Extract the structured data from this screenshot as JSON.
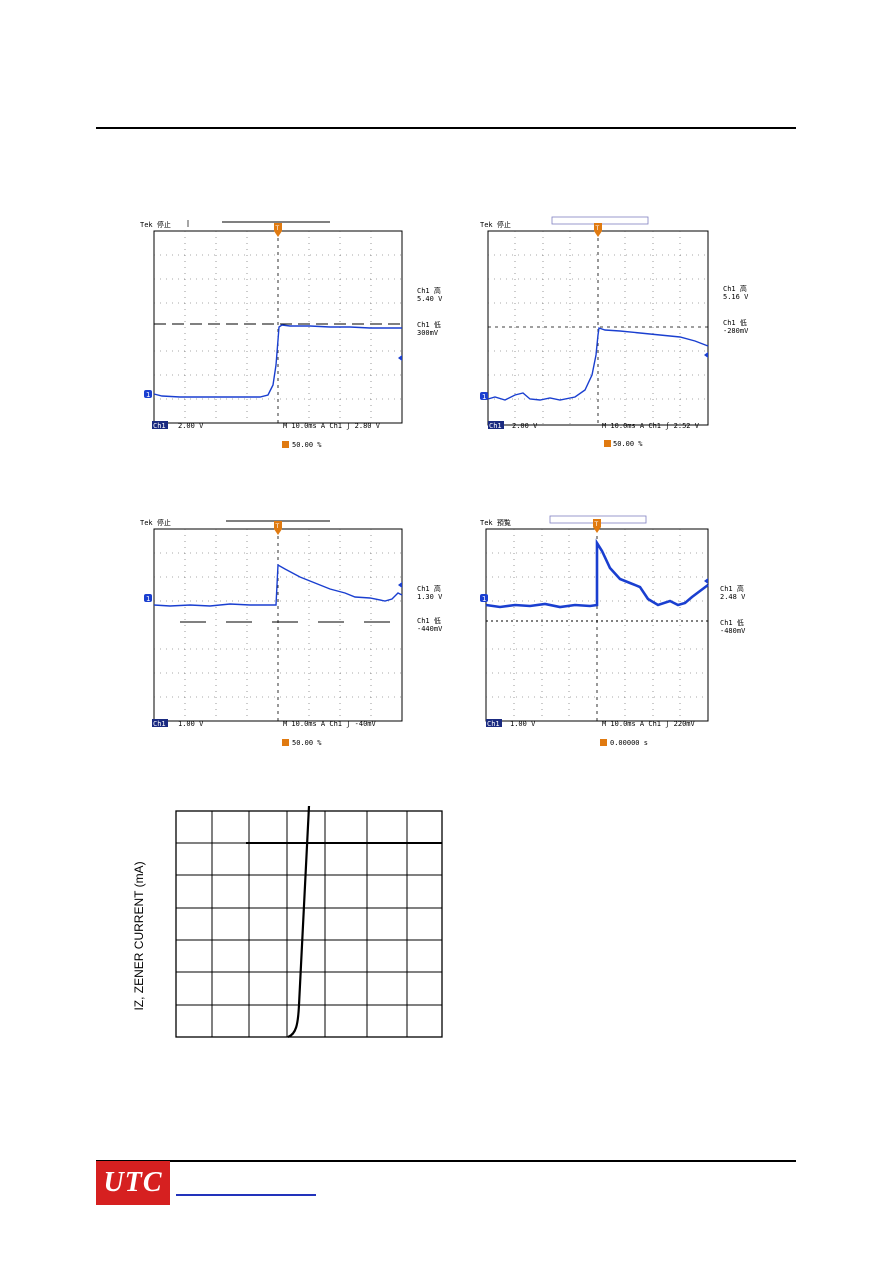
{
  "scopes": [
    {
      "id": "scope1",
      "top_label": "Tek 停止",
      "side": [
        {
          "line1": "Ch1 高",
          "line2": "5.40 V"
        },
        {
          "line1": "Ch1 低",
          "line2": "300mV"
        }
      ],
      "bottom_ch": "Ch1",
      "bottom_left": "2.00 V",
      "bottom_right": "M 10.0ms  A  Ch1  ʃ  2.80 V",
      "trigger_text": "50.00 %",
      "colors": {
        "trace": "#1a3fd0",
        "trigger": "#e07a10"
      }
    },
    {
      "id": "scope2",
      "top_label": "Tek 停止",
      "side": [
        {
          "line1": "Ch1 高",
          "line2": "5.16 V"
        },
        {
          "line1": "Ch1 低",
          "line2": "-280mV"
        }
      ],
      "bottom_ch": "Ch1",
      "bottom_left": "2.00 V",
      "bottom_right": "M 10.0ms  A  Ch1  ʃ  2.52 V",
      "trigger_text": "50.00 %"
    },
    {
      "id": "scope3",
      "top_label": "Tek 停止",
      "side": [
        {
          "line1": "Ch1 高",
          "line2": "1.30 V"
        },
        {
          "line1": "Ch1 低",
          "line2": "-440mV"
        }
      ],
      "bottom_ch": "Ch1",
      "bottom_left": "1.00 V",
      "bottom_right": "M 10.0ms  A  Ch1  ʃ  -40mV",
      "trigger_text": "50.00 %"
    },
    {
      "id": "scope4",
      "top_label": "Tek 預覧",
      "side": [
        {
          "line1": "Ch1 高",
          "line2": "2.48 V"
        },
        {
          "line1": "Ch1 低",
          "line2": "-480mV"
        }
      ],
      "bottom_ch": "Ch1",
      "bottom_left": "1.00 V",
      "bottom_right": "M 10.0ms  A  Ch1  ʃ  220mV",
      "trigger_text": "0.00000 s"
    }
  ],
  "zener_chart": {
    "ylabel": "IZ, ZENER CURRENT (mA)"
  }
}
